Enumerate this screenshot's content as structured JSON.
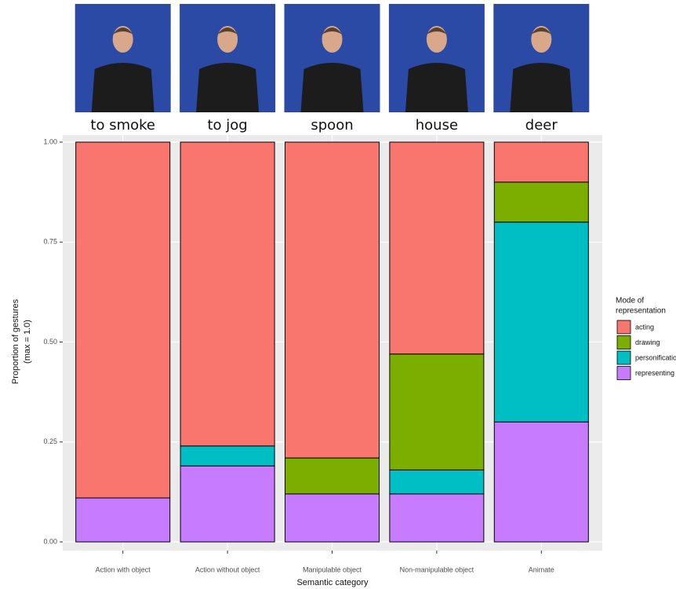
{
  "chart_data": {
    "type": "stacked_bar",
    "photo_captions": [
      "to smoke",
      "to jog",
      "spoon",
      "house",
      "deer"
    ],
    "categories": [
      "Action with object",
      "Action without object",
      "Manipulable object",
      "Non-manipulable object",
      "Animate"
    ],
    "x_label": "Semantic category",
    "y_label": [
      "Proportion of gestures",
      "(max = 1.0)"
    ],
    "legend_title": [
      "Mode of",
      "representation"
    ],
    "legend_position": "right",
    "series": [
      {
        "name": "acting",
        "color": "#F8766D",
        "values": [
          0.89,
          0.76,
          0.79,
          0.53,
          0.1
        ]
      },
      {
        "name": "drawing",
        "color": "#7CAE00",
        "values": [
          0,
          0,
          0.09,
          0.29,
          0.1
        ]
      },
      {
        "name": "personification",
        "color": "#00BFC4",
        "values": [
          0,
          0.05,
          0,
          0.06,
          0.5
        ]
      },
      {
        "name": "representing",
        "color": "#C77CFF",
        "values": [
          0.11,
          0.19,
          0.12,
          0.12,
          0.3
        ]
      }
    ],
    "ylim": [
      -0.02,
      1.02
    ],
    "yticks": [
      {
        "value": 0,
        "label": "0.00"
      },
      {
        "value": 0.25,
        "label": "0.25"
      },
      {
        "value": 0.5,
        "label": "0.50"
      },
      {
        "value": 0.75,
        "label": "0.75"
      },
      {
        "value": 1,
        "label": "1.00"
      }
    ],
    "grid": true
  }
}
